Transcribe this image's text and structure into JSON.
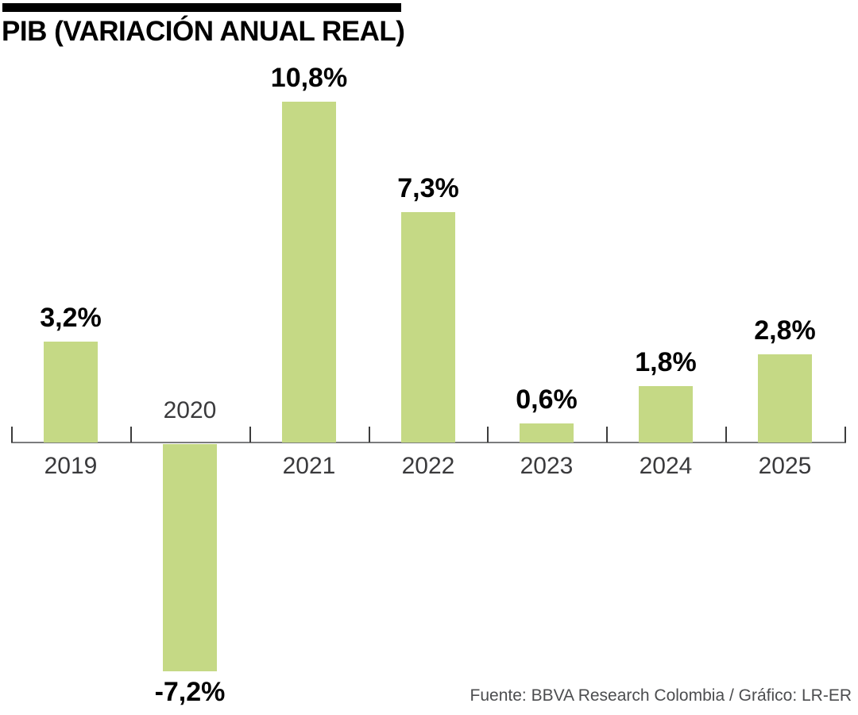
{
  "title": "PIB (VARIACIÓN ANUAL REAL)",
  "source": "Fuente: BBVA Research Colombia / Gráfico: LR-ER",
  "colors": {
    "bar": "#c5d985",
    "axis_line": "#7b7c7e",
    "tick": "#3c3c3c",
    "value_label": "#000000",
    "year_label": "#3a3a3c",
    "title": "#000000",
    "source_text": "#4c4d4f",
    "top_rule": "#000000",
    "background": "#ffffff"
  },
  "chart_data": {
    "type": "bar",
    "title": "PIB (VARIACIÓN ANUAL REAL)",
    "categories": [
      "2019",
      "2020",
      "2021",
      "2022",
      "2023",
      "2024",
      "2025"
    ],
    "values": [
      3.2,
      -7.2,
      10.8,
      7.3,
      0.6,
      1.8,
      2.8
    ],
    "value_labels": [
      "3,2%",
      "-7,2%",
      "10,8%",
      "7,3%",
      "0,6%",
      "1,8%",
      "2,8%"
    ],
    "xlabel": "",
    "ylabel": "",
    "ylim": [
      -7.5,
      11
    ],
    "grid": false,
    "legend": false,
    "baseline": 0,
    "value_label_position": "outside-end",
    "decimal_separator": ","
  }
}
